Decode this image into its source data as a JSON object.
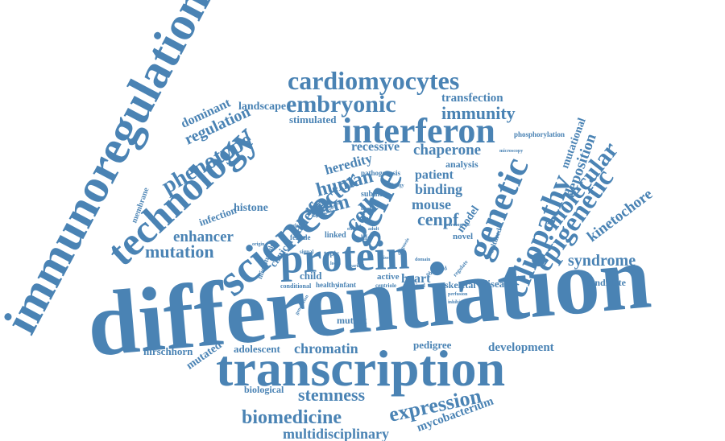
{
  "colors": {
    "word": "#4a83b4",
    "background": "#ffffff"
  },
  "words": [
    "differentiation",
    "transcription",
    "immunoregulation",
    "technology",
    "science",
    "protein",
    "interferon",
    "gene",
    "genetic",
    "ciliopathy",
    "epigenetic",
    "molecular",
    "cardiomyocytes",
    "embryonic",
    "phenotype",
    "regulation",
    "dominant",
    "landscape",
    "transfection",
    "immunity",
    "stimulated",
    "phosphorylation",
    "recessive",
    "chaperone",
    "heredity",
    "analysis",
    "pathogenesis",
    "patient",
    "human",
    "binding",
    "stem",
    "mouse",
    "cenpf",
    "histone",
    "infection",
    "enhancer",
    "mutation",
    "allele",
    "factor",
    "cell",
    "model",
    "mutational",
    "deposition",
    "kinetochore",
    "syndrome",
    "membrane",
    "candidate",
    "disease",
    "skeletal",
    "heart",
    "clinical",
    "microtubule",
    "child",
    "female",
    "linked",
    "life",
    "novel",
    "cultured",
    "subunit",
    "topic",
    "active",
    "healthy",
    "infant",
    "conditional",
    "centriole",
    "required",
    "mutant",
    "hirschhorn",
    "mutated",
    "adolescent",
    "chromatin",
    "pedigree",
    "development",
    "biological",
    "stemness",
    "expression",
    "biomedicine",
    "mycobacterium",
    "multidisciplinary",
    "observed",
    "cardiogenic",
    "regulate",
    "generation",
    "adult",
    "selected",
    "effect",
    "signal",
    "perfusion",
    "inhibiting",
    "microscopy",
    "origin",
    "biology",
    "diagnosis",
    "locus",
    "tissue",
    "variant",
    "domain",
    "marker",
    "screening"
  ]
}
